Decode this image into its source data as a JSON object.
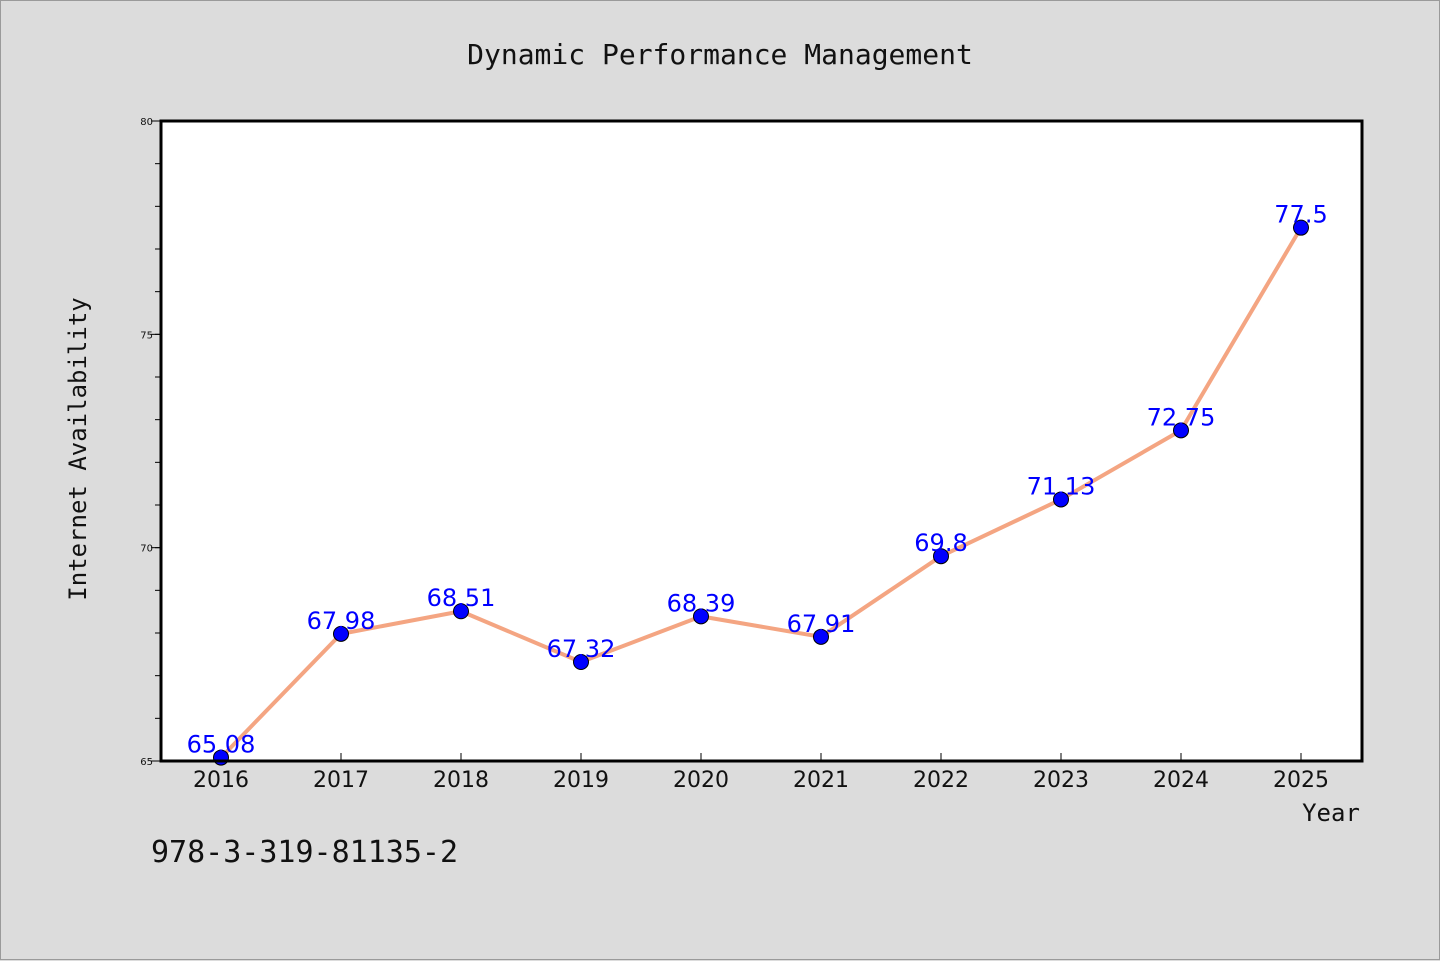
{
  "chart_data": {
    "type": "line",
    "title": "Dynamic Performance Management",
    "xlabel": "Year",
    "ylabel": "Internet Availability",
    "categories": [
      "2016",
      "2017",
      "2018",
      "2019",
      "2020",
      "2021",
      "2022",
      "2023",
      "2024",
      "2025"
    ],
    "series": [
      {
        "values": [
          65.08,
          67.98,
          68.51,
          67.32,
          68.39,
          67.91,
          69.8,
          71.13,
          72.75,
          77.5
        ],
        "data_labels": [
          "65.08",
          "67.98",
          "68.51",
          "67.32",
          "68.39",
          "67.91",
          "69.8",
          "71.13",
          "72.75",
          "77.5"
        ],
        "line_color": "#f4a582",
        "marker_color": "#0000ff"
      }
    ],
    "ylim": [
      65,
      80
    ],
    "yticks": [
      "65",
      "70",
      "75",
      "80"
    ],
    "grid": false,
    "legend": "none"
  },
  "footer_code": "978-3-319-81135-2",
  "colors": {
    "background": "#dcdcdc",
    "plot_background": "#ffffff",
    "line": "#f4a582",
    "marker": "#0000ff",
    "data_label": "#0000ff"
  }
}
